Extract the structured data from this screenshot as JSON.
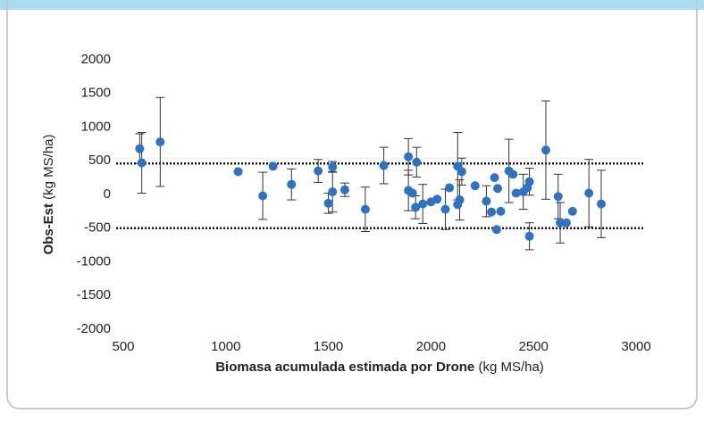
{
  "chart_data": {
    "type": "scatter",
    "ylabel": [
      "Obs-Est",
      "(kg MS/ha)"
    ],
    "xlabel": [
      "Biomasa acumulada estimada por Drone",
      "(kg MS/ha)"
    ],
    "xlim": [
      500,
      3000
    ],
    "xticks": [
      500,
      1000,
      1500,
      2000,
      2500,
      3000
    ],
    "ylim": [
      -2000,
      2000
    ],
    "yticks": [
      -2000,
      -1500,
      -1000,
      -500,
      0,
      500,
      1000,
      1500,
      2000
    ],
    "hlines": [
      460,
      -500
    ],
    "color": "#2f73c0",
    "series": [
      {
        "x": [
          580,
          590,
          680,
          1060,
          1180,
          1230,
          1320,
          1450,
          1500,
          1520,
          1520,
          1580,
          1680,
          1770,
          1890,
          1890,
          1910,
          1930,
          1925,
          1960,
          2000,
          2030,
          2070,
          2090,
          2130,
          2150,
          2140,
          2130,
          2215,
          2270,
          2310,
          2295,
          2320,
          2325,
          2340,
          2380,
          2400,
          2415,
          2450,
          2470,
          2480,
          2480,
          2560,
          2620,
          2630,
          2660,
          2690,
          2770,
          2830
        ],
        "values": [
          680,
          470,
          780,
          340,
          -20,
          420,
          150,
          350,
          -130,
          410,
          40,
          70,
          -220,
          430,
          560,
          60,
          20,
          480,
          -190,
          -140,
          -110,
          -70,
          -220,
          100,
          420,
          340,
          -80,
          -150,
          130,
          -100,
          250,
          -260,
          -520,
          90,
          -250,
          350,
          300,
          20,
          40,
          100,
          190,
          -620,
          660,
          -30,
          -420,
          -420,
          -250,
          20,
          -140
        ],
        "errors": [
          220,
          450,
          660,
          0,
          350,
          0,
          230,
          170,
          150,
          80,
          300,
          100,
          330,
          270,
          270,
          300,
          0,
          220,
          170,
          290,
          0,
          0,
          300,
          0,
          500,
          200,
          300,
          0,
          0,
          230,
          0,
          0,
          0,
          0,
          0,
          470,
          0,
          0,
          260,
          0,
          200,
          200,
          730,
          330,
          300,
          0,
          0,
          500,
          500
        ]
      }
    ]
  }
}
